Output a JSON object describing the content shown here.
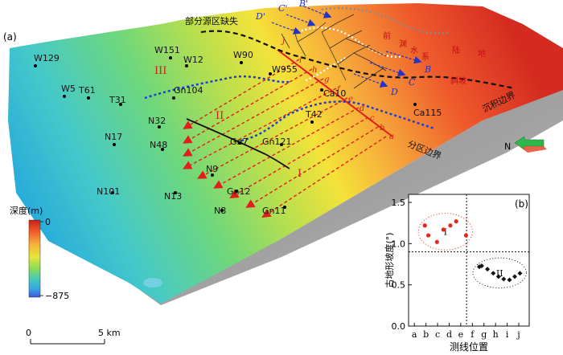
{
  "panel_a": {
    "label": "(a)"
  },
  "panel_b": {
    "label": "(b)"
  },
  "annotations": {
    "missing_source": "部分源区缺失",
    "deposition_boundary": "沉积边界",
    "zone_boundary": "分区边界",
    "red1": "前",
    "red2": "渊",
    "red3": "水",
    "red4": "系",
    "red5": "陆",
    "red6": "地",
    "red7": "斜坡"
  },
  "zones": {
    "I": "I",
    "II": "II",
    "III": "III"
  },
  "profile_letters": [
    "a",
    "b",
    "c",
    "d",
    "e",
    "f",
    "g",
    "h",
    "i"
  ],
  "profile_letter_j": "j",
  "blue_letters": {
    "B": "B",
    "B_prime": "B'",
    "C": "C",
    "C_prime": "C'",
    "D": "D",
    "D_prime": "D'"
  },
  "wells": [
    {
      "id": "W129"
    },
    {
      "id": "W151"
    },
    {
      "id": "W12"
    },
    {
      "id": "W90"
    },
    {
      "id": "W955"
    },
    {
      "id": "W5"
    },
    {
      "id": "T61"
    },
    {
      "id": "T31"
    },
    {
      "id": "Gn104"
    },
    {
      "id": "Ca10"
    },
    {
      "id": "Ca115"
    },
    {
      "id": "N32"
    },
    {
      "id": "T42"
    },
    {
      "id": "N17"
    },
    {
      "id": "N48"
    },
    {
      "id": "Gn7"
    },
    {
      "id": "Gn121"
    },
    {
      "id": "N9"
    },
    {
      "id": "N101"
    },
    {
      "id": "N13"
    },
    {
      "id": "Gn12"
    },
    {
      "id": "N8"
    },
    {
      "id": "Gn11"
    }
  ],
  "depth_legend": {
    "title": "深度(m)",
    "max": "0",
    "min": "−875"
  },
  "scale_bar": {
    "zero": "0",
    "length": "5 km"
  },
  "north": {
    "label": "N"
  },
  "chart_data": {
    "type": "scatter",
    "xlabel": "测线位置",
    "ylabel": "古地形坡度(°)",
    "categories": [
      "a",
      "b",
      "c",
      "d",
      "e",
      "f",
      "g",
      "h",
      "i",
      "j"
    ],
    "ylim": [
      0,
      1.5
    ],
    "yticks": [
      "0.0",
      "0.5",
      "1.0",
      "1.5"
    ],
    "threshold": 0.9,
    "series": [
      {
        "name": "I",
        "color": "#e8261c",
        "points": [
          [
            0.9,
            1.22
          ],
          [
            1.2,
            1.1
          ],
          [
            1.95,
            1.02
          ],
          [
            2.5,
            1.17
          ],
          [
            3.1,
            1.22
          ],
          [
            3.6,
            1.27
          ],
          [
            4.45,
            1.1
          ]
        ]
      },
      {
        "name": "II",
        "color": "#111111",
        "points": [
          [
            5.6,
            0.72
          ],
          [
            5.8,
            0.73
          ],
          [
            6.3,
            0.69
          ],
          [
            6.8,
            0.64
          ],
          [
            7.25,
            0.6
          ],
          [
            7.7,
            0.57
          ],
          [
            8.2,
            0.56
          ],
          [
            8.65,
            0.6
          ],
          [
            9.1,
            0.64
          ]
        ]
      }
    ]
  }
}
